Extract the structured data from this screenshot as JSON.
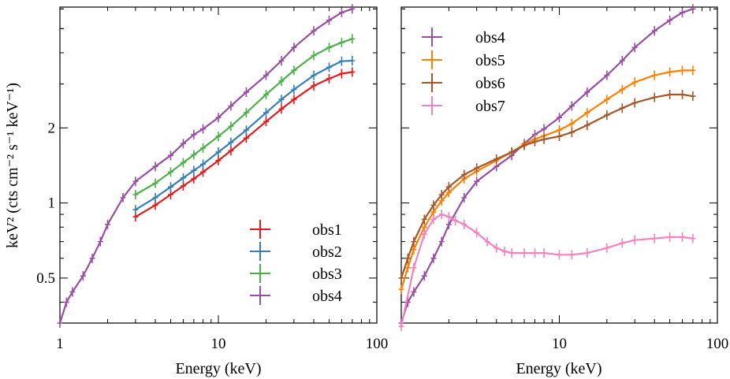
{
  "colors": {
    "obs1": "#e41a1c",
    "obs2": "#377eb8",
    "obs3": "#4daf4a",
    "obs4": "#984ea3",
    "obs5": "#ff7f00",
    "obs6": "#a65628",
    "obs7": "#f781bf"
  },
  "chart_data": [
    {
      "type": "line",
      "panel": "left",
      "xscale": "log",
      "yscale": "log",
      "xlim": [
        1,
        100
      ],
      "ylim": [
        0.33,
        6.1
      ],
      "xticks": [
        1,
        10,
        100
      ],
      "xtick_labels": [
        "1",
        "10",
        "100"
      ],
      "yticks": [
        0.5,
        1,
        2
      ],
      "ytick_labels": [
        "0.5",
        "1",
        "2"
      ],
      "xlabel": "Energy (keV)",
      "ylabel": "keV² (cts cm⁻² s⁻¹ keV⁻¹)",
      "legend_position": "bottom-right",
      "series": [
        {
          "name": "obs1",
          "x": [
            3,
            4,
            5,
            6,
            7,
            8,
            10,
            12,
            15,
            20,
            25,
            30,
            40,
            50,
            60,
            70
          ],
          "y": [
            0.88,
            0.98,
            1.08,
            1.17,
            1.25,
            1.33,
            1.48,
            1.62,
            1.82,
            2.12,
            2.38,
            2.6,
            2.95,
            3.15,
            3.3,
            3.35
          ]
        },
        {
          "name": "obs2",
          "x": [
            3,
            4,
            5,
            6,
            7,
            8,
            10,
            12,
            15,
            20,
            25,
            30,
            40,
            50,
            60,
            70
          ],
          "y": [
            0.94,
            1.05,
            1.16,
            1.26,
            1.35,
            1.43,
            1.6,
            1.75,
            1.96,
            2.3,
            2.6,
            2.85,
            3.25,
            3.5,
            3.7,
            3.72
          ]
        },
        {
          "name": "obs3",
          "x": [
            3,
            4,
            5,
            6,
            7,
            8,
            10,
            12,
            15,
            20,
            25,
            30,
            40,
            50,
            60,
            70
          ],
          "y": [
            1.08,
            1.2,
            1.33,
            1.45,
            1.56,
            1.66,
            1.85,
            2.03,
            2.3,
            2.72,
            3.08,
            3.4,
            3.9,
            4.2,
            4.4,
            4.55
          ]
        },
        {
          "name": "obs4",
          "x": [
            1,
            1.1,
            1.2,
            1.4,
            1.6,
            1.8,
            2,
            2.5,
            3,
            4,
            5,
            6,
            7,
            8,
            10,
            12,
            15,
            20,
            25,
            30,
            40,
            50,
            60,
            70
          ],
          "y": [
            0.33,
            0.4,
            0.44,
            0.51,
            0.6,
            0.7,
            0.82,
            1.05,
            1.22,
            1.4,
            1.55,
            1.73,
            1.88,
            1.98,
            2.2,
            2.45,
            2.78,
            3.25,
            3.72,
            4.2,
            4.9,
            5.4,
            5.8,
            6.0
          ]
        }
      ]
    },
    {
      "type": "line",
      "panel": "right",
      "xscale": "log",
      "yscale": "log",
      "xlim": [
        1,
        100
      ],
      "ylim": [
        0.33,
        6.1
      ],
      "xticks": [
        1,
        10,
        100
      ],
      "xtick_labels": [
        "",
        "10",
        "100"
      ],
      "yticks": [
        0.5,
        1,
        2
      ],
      "ytick_labels": [
        "",
        "",
        ""
      ],
      "xlabel": "Energy (keV)",
      "ylabel": "",
      "legend_position": "top-left",
      "series": [
        {
          "name": "obs4",
          "x": [
            1,
            1.1,
            1.2,
            1.4,
            1.6,
            1.8,
            2,
            2.5,
            3,
            4,
            5,
            6,
            7,
            8,
            10,
            12,
            15,
            20,
            25,
            30,
            40,
            50,
            60,
            70
          ],
          "y": [
            0.33,
            0.4,
            0.44,
            0.51,
            0.6,
            0.7,
            0.82,
            1.05,
            1.22,
            1.4,
            1.55,
            1.73,
            1.88,
            1.98,
            2.2,
            2.45,
            2.78,
            3.25,
            3.72,
            4.2,
            4.9,
            5.4,
            5.8,
            6.0
          ]
        },
        {
          "name": "obs5",
          "x": [
            1,
            1.1,
            1.2,
            1.4,
            1.6,
            1.8,
            2,
            2.5,
            3,
            4,
            5,
            6,
            7,
            8,
            10,
            12,
            15,
            20,
            25,
            30,
            40,
            50,
            60,
            70
          ],
          "y": [
            0.45,
            0.55,
            0.65,
            0.8,
            0.92,
            1.02,
            1.1,
            1.25,
            1.34,
            1.48,
            1.6,
            1.72,
            1.8,
            1.86,
            1.96,
            2.08,
            2.3,
            2.6,
            2.85,
            3.05,
            3.25,
            3.35,
            3.4,
            3.4
          ]
        },
        {
          "name": "obs6",
          "x": [
            1,
            1.1,
            1.2,
            1.4,
            1.6,
            1.8,
            2,
            2.5,
            3,
            4,
            5,
            6,
            7,
            8,
            10,
            12,
            15,
            20,
            25,
            30,
            40,
            50,
            60,
            70
          ],
          "y": [
            0.5,
            0.6,
            0.7,
            0.86,
            0.98,
            1.08,
            1.16,
            1.3,
            1.38,
            1.5,
            1.6,
            1.7,
            1.76,
            1.8,
            1.85,
            1.92,
            2.05,
            2.25,
            2.4,
            2.52,
            2.65,
            2.72,
            2.72,
            2.68
          ]
        },
        {
          "name": "obs7",
          "x": [
            1,
            1.2,
            1.4,
            1.6,
            1.8,
            2,
            2.2,
            2.5,
            3,
            3.5,
            4,
            4.5,
            5,
            6,
            7,
            8,
            10,
            12,
            15,
            20,
            25,
            30,
            40,
            50,
            60,
            70
          ],
          "y": [
            0.32,
            0.55,
            0.75,
            0.86,
            0.9,
            0.88,
            0.85,
            0.82,
            0.76,
            0.7,
            0.66,
            0.64,
            0.63,
            0.63,
            0.63,
            0.63,
            0.62,
            0.62,
            0.63,
            0.66,
            0.69,
            0.71,
            0.72,
            0.73,
            0.73,
            0.72
          ]
        }
      ]
    }
  ]
}
